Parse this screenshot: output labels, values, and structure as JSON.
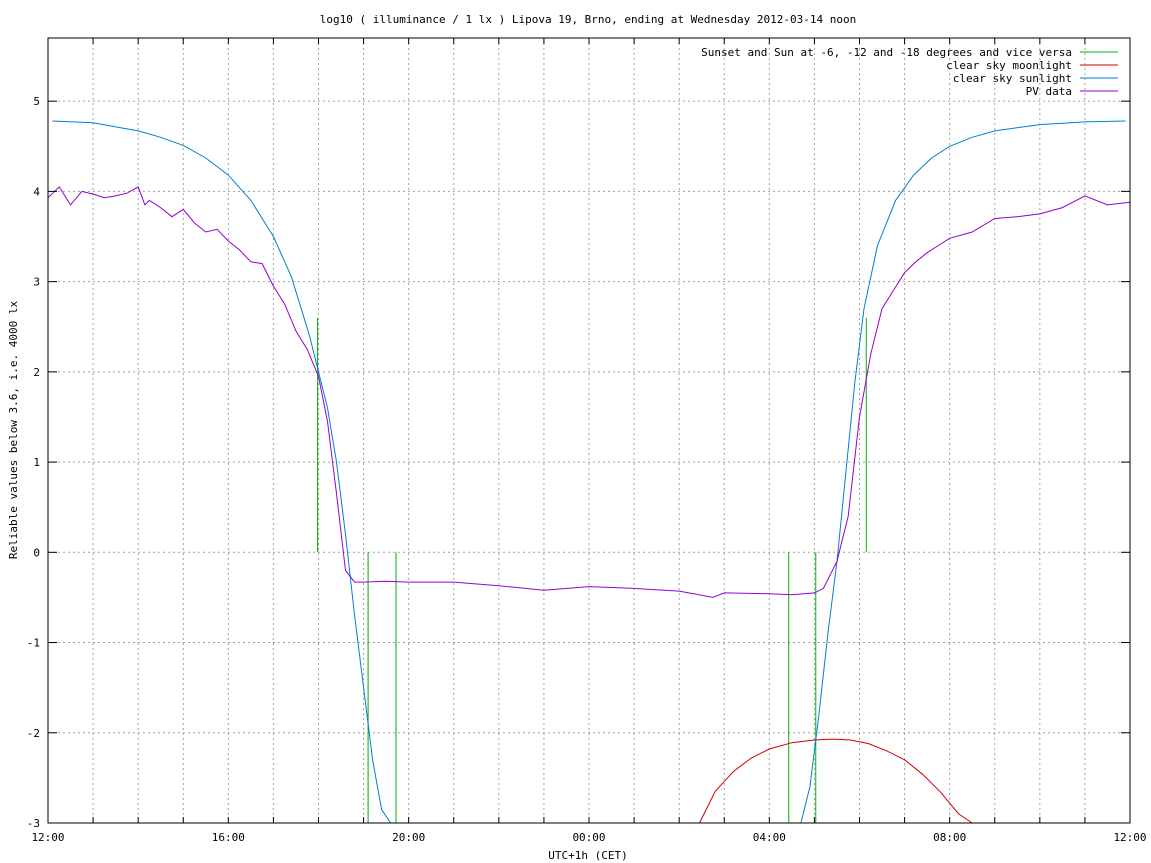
{
  "chart_data": {
    "type": "line",
    "title": "log10 ( illuminance / 1 lx ) Lipova 19, Brno, ending at Wednesday 2012-03-14 noon",
    "xlabel": "UTC+1h (CET)",
    "ylabel": "Reliable values below 3.6, i.e. 4000 lx",
    "x_unit": "hours since 12:00 on 2012-03-13 (CET)",
    "xlim": [
      0,
      24
    ],
    "ylim": [
      -3,
      5.7
    ],
    "x_ticks": [
      {
        "x": 0,
        "label": "12:00"
      },
      {
        "x": 4,
        "label": "16:00"
      },
      {
        "x": 8,
        "label": "20:00"
      },
      {
        "x": 12,
        "label": "00:00"
      },
      {
        "x": 16,
        "label": "04:00"
      },
      {
        "x": 20,
        "label": "08:00"
      },
      {
        "x": 24,
        "label": "12:00"
      }
    ],
    "x_minor_ticks": [
      1,
      2,
      3,
      5,
      6,
      7,
      9,
      10,
      11,
      13,
      14,
      15,
      17,
      18,
      19,
      21,
      22,
      23
    ],
    "y_ticks": [
      {
        "y": -3,
        "label": "-3"
      },
      {
        "y": -2,
        "label": "-2"
      },
      {
        "y": -1,
        "label": "-1"
      },
      {
        "y": 0,
        "label": "0"
      },
      {
        "y": 1,
        "label": "1"
      },
      {
        "y": 2,
        "label": "2"
      },
      {
        "y": 3,
        "label": "3"
      },
      {
        "y": 4,
        "label": "4"
      },
      {
        "y": 5,
        "label": "5"
      }
    ],
    "grid": true,
    "legend_position": "top-right",
    "series": [
      {
        "name": "Sunset and Sun at -6, -12 and -18 degrees and vice versa",
        "color": "#00b000",
        "kind": "vertical-markers",
        "markers": [
          {
            "x": 5.98,
            "y_from": 0,
            "y_to": 2.6
          },
          {
            "x": 7.1,
            "y_from": -3,
            "y_to": 0
          },
          {
            "x": 7.72,
            "y_from": -3,
            "y_to": 0
          },
          {
            "x": 16.43,
            "y_from": -3,
            "y_to": 0
          },
          {
            "x": 17.03,
            "y_from": -3,
            "y_to": 0
          },
          {
            "x": 18.15,
            "y_from": 0,
            "y_to": 2.6
          }
        ]
      },
      {
        "name": "clear sky moonlight",
        "color": "#d00000",
        "x": [
          14.45,
          14.8,
          15.2,
          15.6,
          16.0,
          16.5,
          17.0,
          17.4,
          17.8,
          18.2,
          18.6,
          19.0,
          19.4,
          19.8,
          20.2,
          20.5
        ],
        "y": [
          -3.0,
          -2.65,
          -2.43,
          -2.28,
          -2.18,
          -2.11,
          -2.08,
          -2.07,
          -2.08,
          -2.12,
          -2.2,
          -2.3,
          -2.46,
          -2.66,
          -2.9,
          -3.0
        ]
      },
      {
        "name": "clear sky sunlight",
        "color": "#0080d0",
        "x": [
          0.1,
          1,
          2,
          2.5,
          3,
          3.5,
          4,
          4.5,
          5,
          5.4,
          5.8,
          6.2,
          6.4,
          6.6,
          6.8,
          7.0,
          7.2,
          7.4,
          7.6,
          7.75,
          16.7,
          16.9,
          17.1,
          17.3,
          17.5,
          17.7,
          17.9,
          18.1,
          18.4,
          18.8,
          19.2,
          19.6,
          20.0,
          20.5,
          21.0,
          22.0,
          23.0,
          23.9
        ],
        "y": [
          4.78,
          4.76,
          4.67,
          4.6,
          4.51,
          4.37,
          4.18,
          3.9,
          3.5,
          3.05,
          2.4,
          1.6,
          1.0,
          0.2,
          -0.7,
          -1.5,
          -2.3,
          -2.85,
          -3.0,
          -3.0,
          -3.0,
          -2.6,
          -1.8,
          -0.9,
          -0.1,
          0.9,
          1.9,
          2.7,
          3.4,
          3.9,
          4.18,
          4.37,
          4.5,
          4.6,
          4.67,
          4.74,
          4.77,
          4.78
        ]
      },
      {
        "name": "PV data",
        "color": "#9400d3",
        "x": [
          0.0,
          0.25,
          0.5,
          0.75,
          1.0,
          1.25,
          1.5,
          1.75,
          2.0,
          2.15,
          2.25,
          2.5,
          2.75,
          3.0,
          3.25,
          3.5,
          3.75,
          4.0,
          4.25,
          4.5,
          4.75,
          5.0,
          5.25,
          5.5,
          5.75,
          6.0,
          6.2,
          6.4,
          6.6,
          6.8,
          7.0,
          7.5,
          8.0,
          9.0,
          10.0,
          11.0,
          12.0,
          13.0,
          14.0,
          14.75,
          15.0,
          16.0,
          16.5,
          17.0,
          17.2,
          17.5,
          17.75,
          18.0,
          18.25,
          18.5,
          18.75,
          19.0,
          19.25,
          19.5,
          19.75,
          20.0,
          20.5,
          21.0,
          21.5,
          22.0,
          22.5,
          23.0,
          23.5,
          24.0
        ],
        "y": [
          3.93,
          4.05,
          3.85,
          4.0,
          3.97,
          3.93,
          3.95,
          3.98,
          4.05,
          3.85,
          3.9,
          3.82,
          3.72,
          3.8,
          3.65,
          3.55,
          3.58,
          3.45,
          3.35,
          3.22,
          3.2,
          2.95,
          2.75,
          2.45,
          2.25,
          1.95,
          1.45,
          0.65,
          -0.2,
          -0.33,
          -0.33,
          -0.32,
          -0.33,
          -0.33,
          -0.37,
          -0.42,
          -0.38,
          -0.4,
          -0.43,
          -0.5,
          -0.45,
          -0.46,
          -0.47,
          -0.45,
          -0.4,
          -0.1,
          0.4,
          1.5,
          2.2,
          2.7,
          2.9,
          3.1,
          3.22,
          3.32,
          3.4,
          3.48,
          3.55,
          3.7,
          3.72,
          3.75,
          3.82,
          3.95,
          3.85,
          3.88
        ]
      }
    ]
  }
}
